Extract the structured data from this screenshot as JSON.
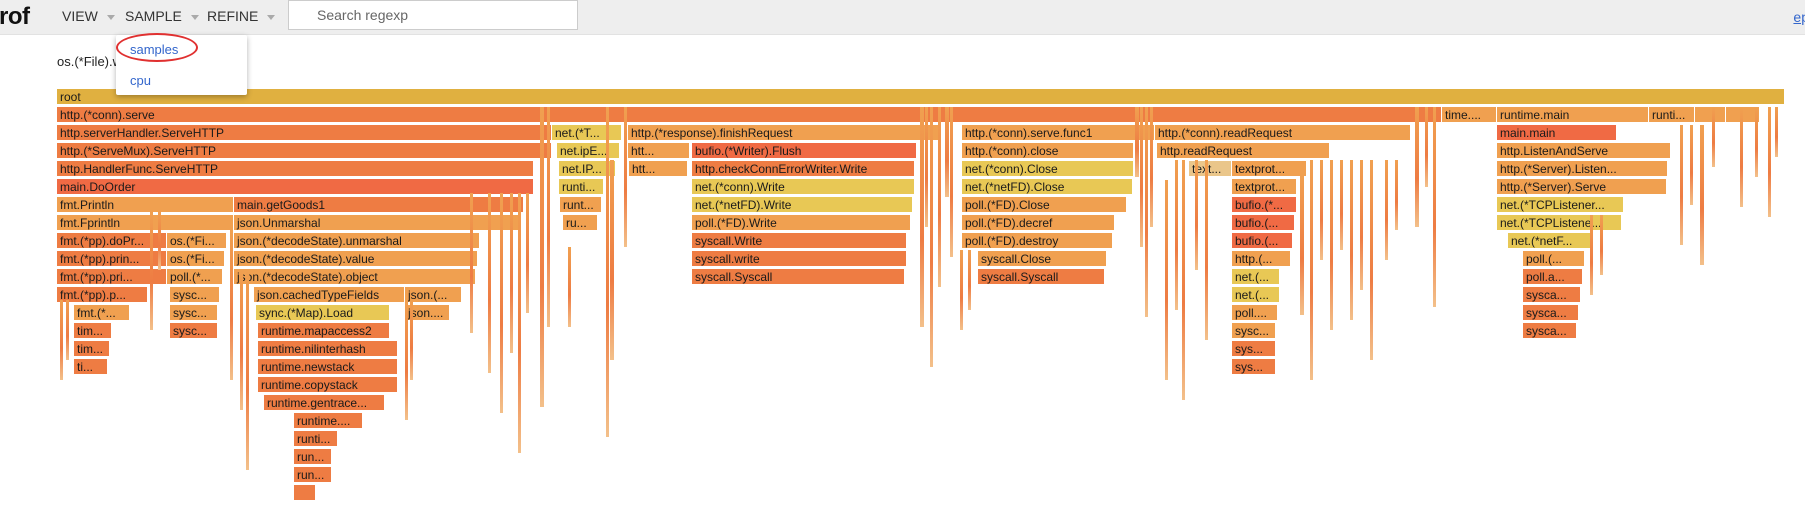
{
  "header": {
    "brand": "rof",
    "menus": [
      "VIEW",
      "SAMPLE",
      "REFINE"
    ],
    "search_placeholder": "Search regexp",
    "right_link": "ep"
  },
  "sample_menu": {
    "items": [
      "samples",
      "cpu"
    ],
    "selected": "samples"
  },
  "subtitle": "os.(*File).w",
  "colors": {
    "root": "#e0b040",
    "orange": "#f0a050",
    "deep": "#ee7c43",
    "red": "#f06a44",
    "yellow": "#e8c855",
    "light": "#eac68a"
  },
  "flame": [
    {
      "row": 0,
      "l": 57,
      "r": 1785,
      "t": "root",
      "c": "root"
    },
    {
      "row": 1,
      "l": 57,
      "r": 1442,
      "t": "http.(*conn).serve",
      "c": "deep"
    },
    {
      "row": 1,
      "l": 1442,
      "r": 1497,
      "t": "time....",
      "c": "orange"
    },
    {
      "row": 1,
      "l": 1497,
      "r": 1649,
      "t": "runtime.main",
      "c": "orange"
    },
    {
      "row": 1,
      "l": 1649,
      "r": 1695,
      "t": "runti...",
      "c": "orange"
    },
    {
      "row": 1,
      "l": 1695,
      "r": 1726,
      "t": "",
      "c": "orange"
    },
    {
      "row": 1,
      "l": 1726,
      "r": 1760,
      "t": "",
      "c": "orange"
    },
    {
      "row": 2,
      "l": 57,
      "r": 552,
      "t": "http.serverHandler.ServeHTTP",
      "c": "deep"
    },
    {
      "row": 2,
      "l": 552,
      "r": 622,
      "t": "net.(*T...",
      "c": "yellow"
    },
    {
      "row": 2,
      "l": 628,
      "r": 942,
      "t": "http.(*response).finishRequest",
      "c": "orange"
    },
    {
      "row": 2,
      "l": 962,
      "r": 1155,
      "t": "http.(*conn).serve.func1",
      "c": "orange"
    },
    {
      "row": 2,
      "l": 1155,
      "r": 1411,
      "t": "http.(*conn).readRequest",
      "c": "orange"
    },
    {
      "row": 2,
      "l": 1497,
      "r": 1617,
      "t": "main.main",
      "c": "red"
    },
    {
      "row": 3,
      "l": 57,
      "r": 552,
      "t": "http.(*ServeMux).ServeHTTP",
      "c": "deep"
    },
    {
      "row": 3,
      "l": 557,
      "r": 620,
      "t": "net.ipE...",
      "c": "yellow"
    },
    {
      "row": 3,
      "l": 628,
      "r": 690,
      "t": "htt...",
      "c": "orange"
    },
    {
      "row": 3,
      "l": 692,
      "r": 917,
      "t": "bufio.(*Writer).Flush",
      "c": "red"
    },
    {
      "row": 3,
      "l": 962,
      "r": 1134,
      "t": "http.(*conn).close",
      "c": "orange"
    },
    {
      "row": 3,
      "l": 1157,
      "r": 1330,
      "t": "http.readRequest",
      "c": "orange"
    },
    {
      "row": 3,
      "l": 1497,
      "r": 1671,
      "t": "http.ListenAndServe",
      "c": "orange"
    },
    {
      "row": 4,
      "l": 57,
      "r": 534,
      "t": "http.HandlerFunc.ServeHTTP",
      "c": "deep"
    },
    {
      "row": 4,
      "l": 559,
      "r": 616,
      "t": "net.IP...",
      "c": "yellow"
    },
    {
      "row": 4,
      "l": 629,
      "r": 688,
      "t": "htt...",
      "c": "orange"
    },
    {
      "row": 4,
      "l": 692,
      "r": 915,
      "t": "http.checkConnErrorWriter.Write",
      "c": "deep"
    },
    {
      "row": 4,
      "l": 962,
      "r": 1134,
      "t": "net.(*conn).Close",
      "c": "yellow"
    },
    {
      "row": 4,
      "l": 1189,
      "r": 1232,
      "t": "text...",
      "c": "light"
    },
    {
      "row": 4,
      "l": 1232,
      "r": 1307,
      "t": "textprot...",
      "c": "orange"
    },
    {
      "row": 4,
      "l": 1497,
      "r": 1668,
      "t": "http.(*Server).Listen...",
      "c": "orange"
    },
    {
      "row": 5,
      "l": 57,
      "r": 534,
      "t": "main.DoOrder",
      "c": "red"
    },
    {
      "row": 5,
      "l": 559,
      "r": 604,
      "t": "runti...",
      "c": "yellow"
    },
    {
      "row": 5,
      "l": 692,
      "r": 915,
      "t": "net.(*conn).Write",
      "c": "yellow"
    },
    {
      "row": 5,
      "l": 962,
      "r": 1133,
      "t": "net.(*netFD).Close",
      "c": "yellow"
    },
    {
      "row": 5,
      "l": 1232,
      "r": 1297,
      "t": "textprot...",
      "c": "orange"
    },
    {
      "row": 5,
      "l": 1497,
      "r": 1667,
      "t": "http.(*Server).Serve",
      "c": "orange"
    },
    {
      "row": 6,
      "l": 57,
      "r": 234,
      "t": "fmt.Println",
      "c": "orange"
    },
    {
      "row": 6,
      "l": 234,
      "r": 524,
      "t": "main.getGoods1",
      "c": "deep"
    },
    {
      "row": 6,
      "l": 560,
      "r": 602,
      "t": "runt...",
      "c": "orange"
    },
    {
      "row": 6,
      "l": 692,
      "r": 913,
      "t": "net.(*netFD).Write",
      "c": "yellow"
    },
    {
      "row": 6,
      "l": 962,
      "r": 1127,
      "t": "poll.(*FD).Close",
      "c": "orange"
    },
    {
      "row": 6,
      "l": 1232,
      "r": 1297,
      "t": "bufio.(*...",
      "c": "red"
    },
    {
      "row": 6,
      "l": 1497,
      "r": 1624,
      "t": "net.(*TCPListener...",
      "c": "yellow"
    },
    {
      "row": 7,
      "l": 57,
      "r": 234,
      "t": "fmt.Fprintln",
      "c": "orange"
    },
    {
      "row": 7,
      "l": 234,
      "r": 520,
      "t": "json.Unmarshal",
      "c": "orange"
    },
    {
      "row": 7,
      "l": 563,
      "r": 598,
      "t": "ru...",
      "c": "orange"
    },
    {
      "row": 7,
      "l": 692,
      "r": 911,
      "t": "poll.(*FD).Write",
      "c": "orange"
    },
    {
      "row": 7,
      "l": 962,
      "r": 1115,
      "t": "poll.(*FD).decref",
      "c": "orange"
    },
    {
      "row": 7,
      "l": 1232,
      "r": 1295,
      "t": "bufio.(...",
      "c": "red"
    },
    {
      "row": 7,
      "l": 1497,
      "r": 1622,
      "t": "net.(*TCPListene...",
      "c": "yellow"
    },
    {
      "row": 8,
      "l": 57,
      "r": 167,
      "t": "fmt.(*pp).doPr...",
      "c": "deep"
    },
    {
      "row": 8,
      "l": 167,
      "r": 227,
      "t": "os.(*Fi...",
      "c": "orange"
    },
    {
      "row": 8,
      "l": 234,
      "r": 480,
      "t": "json.(*decodeState).unmarshal",
      "c": "orange"
    },
    {
      "row": 8,
      "l": 692,
      "r": 907,
      "t": "syscall.Write",
      "c": "deep"
    },
    {
      "row": 8,
      "l": 962,
      "r": 1113,
      "t": "poll.(*FD).destroy",
      "c": "orange"
    },
    {
      "row": 8,
      "l": 1232,
      "r": 1293,
      "t": "bufio.(...",
      "c": "red"
    },
    {
      "row": 8,
      "l": 1508,
      "r": 1593,
      "t": "net.(*netF...",
      "c": "yellow"
    },
    {
      "row": 9,
      "l": 57,
      "r": 167,
      "t": "fmt.(*pp).prin...",
      "c": "deep"
    },
    {
      "row": 9,
      "l": 167,
      "r": 225,
      "t": "os.(*Fi...",
      "c": "orange"
    },
    {
      "row": 9,
      "l": 234,
      "r": 478,
      "t": "json.(*decodeState).value",
      "c": "orange"
    },
    {
      "row": 9,
      "l": 692,
      "r": 907,
      "t": "syscall.write",
      "c": "deep"
    },
    {
      "row": 9,
      "l": 978,
      "r": 1107,
      "t": "syscall.Close",
      "c": "orange"
    },
    {
      "row": 9,
      "l": 1232,
      "r": 1291,
      "t": "http.(...",
      "c": "orange"
    },
    {
      "row": 9,
      "l": 1523,
      "r": 1585,
      "t": "poll.(...",
      "c": "orange"
    },
    {
      "row": 10,
      "l": 57,
      "r": 167,
      "t": "fmt.(*pp).pri...",
      "c": "deep"
    },
    {
      "row": 10,
      "l": 167,
      "r": 223,
      "t": "poll.(*...",
      "c": "orange"
    },
    {
      "row": 10,
      "l": 234,
      "r": 476,
      "t": "json.(*decodeState).object",
      "c": "orange"
    },
    {
      "row": 10,
      "l": 692,
      "r": 905,
      "t": "syscall.Syscall",
      "c": "deep"
    },
    {
      "row": 10,
      "l": 978,
      "r": 1105,
      "t": "syscall.Syscall",
      "c": "deep"
    },
    {
      "row": 10,
      "l": 1232,
      "r": 1280,
      "t": "net.(...",
      "c": "yellow"
    },
    {
      "row": 10,
      "l": 1523,
      "r": 1583,
      "t": "poll.a...",
      "c": "deep"
    },
    {
      "row": 11,
      "l": 57,
      "r": 148,
      "t": "fmt.(*pp).p...",
      "c": "deep"
    },
    {
      "row": 11,
      "l": 170,
      "r": 220,
      "t": "sysc...",
      "c": "orange"
    },
    {
      "row": 11,
      "l": 254,
      "r": 405,
      "t": "json.cachedTypeFields",
      "c": "orange"
    },
    {
      "row": 11,
      "l": 405,
      "r": 462,
      "t": "json.(...",
      "c": "orange"
    },
    {
      "row": 11,
      "l": 1232,
      "r": 1280,
      "t": "net.(...",
      "c": "yellow"
    },
    {
      "row": 11,
      "l": 1523,
      "r": 1581,
      "t": "sysca...",
      "c": "deep"
    },
    {
      "row": 12,
      "l": 74,
      "r": 130,
      "t": "fmt.(*...",
      "c": "orange"
    },
    {
      "row": 12,
      "l": 170,
      "r": 218,
      "t": "sysc...",
      "c": "orange"
    },
    {
      "row": 12,
      "l": 256,
      "r": 390,
      "t": "sync.(*Map).Load",
      "c": "yellow"
    },
    {
      "row": 12,
      "l": 405,
      "r": 450,
      "t": "json....",
      "c": "orange"
    },
    {
      "row": 12,
      "l": 1232,
      "r": 1278,
      "t": "poll....",
      "c": "orange"
    },
    {
      "row": 12,
      "l": 1523,
      "r": 1579,
      "t": "sysca...",
      "c": "deep"
    },
    {
      "row": 13,
      "l": 74,
      "r": 112,
      "t": "tim...",
      "c": "deep"
    },
    {
      "row": 13,
      "l": 170,
      "r": 218,
      "t": "sysc...",
      "c": "deep"
    },
    {
      "row": 13,
      "l": 258,
      "r": 390,
      "t": "runtime.mapaccess2",
      "c": "deep"
    },
    {
      "row": 13,
      "l": 1232,
      "r": 1276,
      "t": "sysc...",
      "c": "orange"
    },
    {
      "row": 13,
      "l": 1523,
      "r": 1577,
      "t": "sysca...",
      "c": "deep"
    },
    {
      "row": 14,
      "l": 74,
      "r": 110,
      "t": "tim...",
      "c": "deep"
    },
    {
      "row": 14,
      "l": 258,
      "r": 398,
      "t": "runtime.nilinterhash",
      "c": "deep"
    },
    {
      "row": 14,
      "l": 1232,
      "r": 1276,
      "t": "sys...",
      "c": "deep"
    },
    {
      "row": 15,
      "l": 74,
      "r": 108,
      "t": "ti...",
      "c": "deep"
    },
    {
      "row": 15,
      "l": 258,
      "r": 398,
      "t": "runtime.newstack",
      "c": "deep"
    },
    {
      "row": 15,
      "l": 1232,
      "r": 1276,
      "t": "sys...",
      "c": "deep"
    },
    {
      "row": 16,
      "l": 258,
      "r": 398,
      "t": "runtime.copystack",
      "c": "deep"
    },
    {
      "row": 17,
      "l": 264,
      "r": 385,
      "t": "runtime.gentrace...",
      "c": "deep"
    },
    {
      "row": 18,
      "l": 294,
      "r": 363,
      "t": "runtime....",
      "c": "deep"
    },
    {
      "row": 19,
      "l": 294,
      "r": 338,
      "t": "runti...",
      "c": "deep"
    },
    {
      "row": 20,
      "l": 294,
      "r": 332,
      "t": "run...",
      "c": "deep"
    },
    {
      "row": 21,
      "l": 294,
      "r": 332,
      "t": "run...",
      "c": "deep"
    },
    {
      "row": 22,
      "l": 294,
      "r": 316,
      "t": "",
      "c": "deep"
    }
  ]
}
